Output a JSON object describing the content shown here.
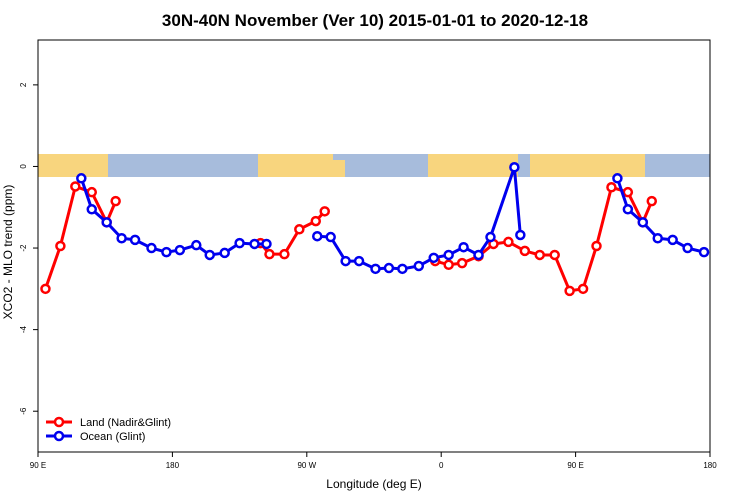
{
  "chart_data": {
    "type": "line",
    "title": "30N-40N November (Ver 10)   2015-01-01 to 2020-12-18",
    "xlabel": "Longitude (deg E)",
    "ylabel": "XCO2 - MLO trend (ppm)",
    "xlim": [
      90,
      540
    ],
    "xticks": [
      {
        "value": 90,
        "label": "90 E"
      },
      180,
      {
        "value": 270,
        "label": "90 W"
      },
      {
        "value": 360,
        "label": "0"
      },
      {
        "value": 450,
        "label": "90 E"
      },
      {
        "value": 540,
        "label": "180"
      }
    ],
    "ylim": [
      -7,
      3.1
    ],
    "yticks": [
      -6,
      -4,
      -2,
      0,
      2
    ],
    "legend": "bottom-left",
    "series": [
      {
        "name": "Land (Nadir&Glint)",
        "color": "#ff0000",
        "x": [
          95,
          105,
          115,
          126,
          136,
          142,
          null,
          239,
          245,
          255,
          265,
          276,
          282,
          null,
          356,
          365,
          374,
          385,
          395,
          405,
          416,
          426,
          436,
          446,
          455,
          464,
          474,
          485,
          495,
          501
        ],
        "values": [
          -3.0,
          -1.95,
          -0.49,
          -0.63,
          -1.37,
          -0.85,
          null,
          -1.88,
          -2.15,
          -2.15,
          -1.54,
          -1.34,
          -1.1,
          null,
          -2.32,
          -2.41,
          -2.37,
          -2.2,
          -1.9,
          -1.85,
          -2.07,
          -2.17,
          -2.17,
          -3.05,
          -3.0,
          -1.95,
          -0.51,
          -0.63,
          -1.37,
          -0.85
        ]
      },
      {
        "name": "Ocean (Glint)",
        "color": "#0000ee",
        "x": [
          119,
          126,
          136,
          146,
          155,
          166,
          176,
          185,
          196,
          205,
          215,
          225,
          235,
          243,
          null,
          277,
          286,
          296,
          305,
          316,
          325,
          334,
          345,
          355,
          365,
          375,
          385,
          393,
          409,
          413,
          null,
          478,
          485,
          495,
          505,
          515,
          525,
          536
        ],
        "values": [
          -0.29,
          -1.05,
          -1.37,
          -1.76,
          -1.8,
          -2.0,
          -2.1,
          -2.05,
          -1.93,
          -2.17,
          -2.12,
          -1.88,
          -1.9,
          -1.9,
          null,
          -1.71,
          -1.73,
          -2.32,
          -2.32,
          -2.51,
          -2.49,
          -2.51,
          -2.44,
          -2.24,
          -2.17,
          -1.98,
          -2.17,
          -1.73,
          -0.02,
          -1.68,
          null,
          -0.29,
          -1.05,
          -1.37,
          -1.76,
          -1.8,
          -2.0,
          -2.1
        ]
      }
    ]
  }
}
